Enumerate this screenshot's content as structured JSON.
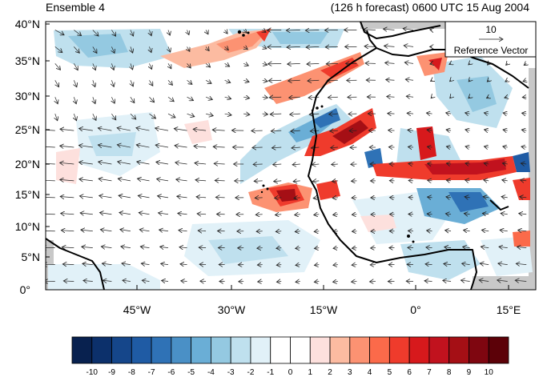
{
  "title_left": "Ensemble 4",
  "title_right": "(126 h forecast) 0600 UTC 15 Aug 2004",
  "map": {
    "lat_labels": [
      "0°",
      "5°N",
      "10°N",
      "15°N",
      "20°N",
      "25°N",
      "30°N",
      "35°N",
      "40°N"
    ],
    "lon_labels": [
      "45°W",
      "30°W",
      "15°W",
      "0°",
      "15°E"
    ],
    "reference_vector": {
      "value": "10",
      "label": "Reference Vector"
    }
  },
  "colorbar": {
    "labels": [
      "-10",
      "-9",
      "-8",
      "-7",
      "-6",
      "-5",
      "-4",
      "-3",
      "-2",
      "-1",
      "0",
      "1",
      "2",
      "3",
      "4",
      "5",
      "6",
      "7",
      "8",
      "9",
      "10"
    ],
    "colors": [
      "#08214f",
      "#0c306b",
      "#15468a",
      "#1f5ba4",
      "#2f72b6",
      "#4a90c6",
      "#6aaed6",
      "#94c9e1",
      "#bfe0ee",
      "#e1f1f8",
      "#ffffff",
      "#ffffff",
      "#fde0dd",
      "#fcbba1",
      "#fc9272",
      "#fb6a4a",
      "#ef3b2c",
      "#d7191c",
      "#c1121e",
      "#a50f15",
      "#7f0610",
      "#5c0108"
    ]
  }
}
